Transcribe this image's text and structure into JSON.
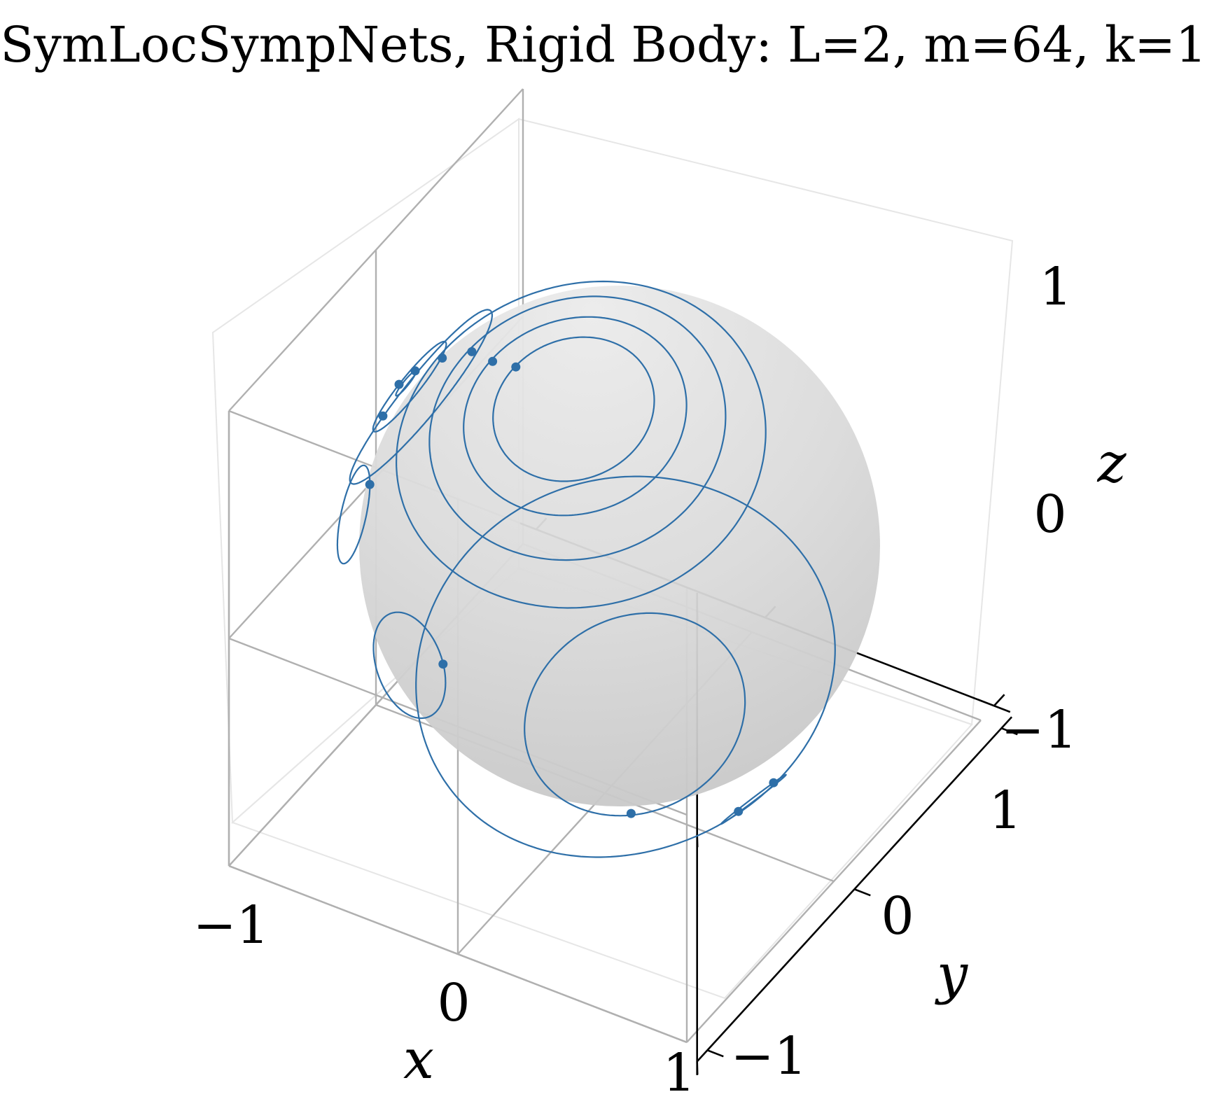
{
  "chart_data": {
    "type": "line3d",
    "title": "SymLocSympNets, Rigid Body: L=2, m=64, k=1",
    "xlabel": "x",
    "ylabel": "y",
    "zlabel": "z",
    "xlim": [
      -1,
      1
    ],
    "ylim": [
      -1,
      1
    ],
    "zlim": [
      -1,
      1
    ],
    "xticks": [
      "−1",
      "0",
      "1"
    ],
    "yticks": [
      "−1",
      "0",
      "1"
    ],
    "zticks": [
      "−1",
      "0",
      "1"
    ],
    "grid": true,
    "surface": {
      "shape": "unit-sphere",
      "color": "#d0d0d0"
    },
    "series_color": "#2e6fa8",
    "series": [
      {
        "orbit": 1,
        "start": [
          -0.23,
          0.22,
          0.9
        ]
      },
      {
        "orbit": 2,
        "start": [
          -0.35,
          0.21,
          0.9
        ]
      },
      {
        "orbit": 3,
        "start": [
          -0.47,
          0.15,
          0.84
        ]
      },
      {
        "orbit": 4,
        "start": [
          -0.57,
          0.13,
          0.71
        ]
      },
      {
        "orbit": 5,
        "start": [
          -0.64,
          0.1,
          0.55
        ]
      },
      {
        "orbit": 6,
        "start": [
          -0.66,
          0.04,
          0.38
        ]
      },
      {
        "orbit": 7,
        "start": [
          -0.61,
          0.02,
          0.2
        ]
      },
      {
        "orbit": 8,
        "start": [
          -0.46,
          0.02,
          0.0
        ]
      },
      {
        "orbit": 9,
        "start": [
          -0.22,
          0.0,
          -0.22
        ]
      },
      {
        "orbit": 10,
        "start": [
          0.05,
          0.02,
          -0.32
        ]
      },
      {
        "orbit": 11,
        "start": [
          0.29,
          0.05,
          -0.33
        ]
      },
      {
        "orbit": 12,
        "start": [
          0.45,
          0.09,
          -0.27
        ]
      }
    ]
  }
}
